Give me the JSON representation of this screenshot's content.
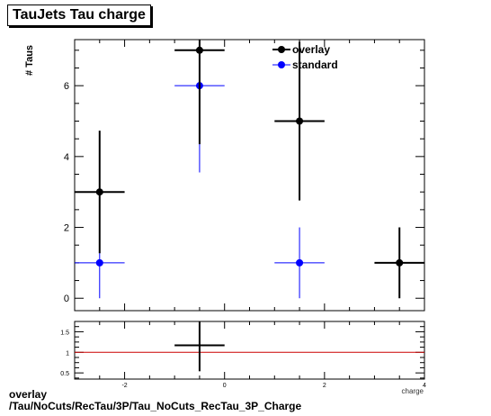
{
  "title": "TauJets Tau charge",
  "footer": {
    "line1": "overlay",
    "line2": "/Tau/NoCuts/RecTau/3P/Tau_NoCuts_RecTau_3P_Charge"
  },
  "chart_data": [
    {
      "type": "scatter",
      "panel": "main",
      "ylabel": "# Taus",
      "xlabel": "charge",
      "xlim": [
        -3,
        4
      ],
      "ylim": [
        -0.35,
        7.3
      ],
      "y_ticks": [
        0,
        2,
        4,
        6
      ],
      "legend": {
        "placement": "top-right",
        "entries": [
          "overlay",
          "standard"
        ]
      },
      "series": [
        {
          "name": "overlay",
          "color": "#000000",
          "points": [
            {
              "x": -2.5,
              "y": 3,
              "xerr": 0.5,
              "yerr_low": 1.73,
              "yerr_high": 1.73
            },
            {
              "x": -0.5,
              "y": 7,
              "xerr": 0.5,
              "yerr_low": 2.65,
              "yerr_high": 2.65
            },
            {
              "x": 1.5,
              "y": 5,
              "xerr": 0.5,
              "yerr_low": 2.24,
              "yerr_high": 2.24
            },
            {
              "x": 3.5,
              "y": 1,
              "xerr": 0.5,
              "yerr_low": 1.0,
              "yerr_high": 1.0
            }
          ]
        },
        {
          "name": "standard",
          "color": "#0000ff",
          "points": [
            {
              "x": -2.5,
              "y": 1,
              "xerr": 0.5,
              "yerr_low": 1.0,
              "yerr_high": 1.0
            },
            {
              "x": -0.5,
              "y": 6,
              "xerr": 0.5,
              "yerr_low": 2.45,
              "yerr_high": 2.45
            },
            {
              "x": 1.5,
              "y": 1,
              "xerr": 0.5,
              "yerr_low": 1.0,
              "yerr_high": 1.0
            }
          ]
        }
      ]
    },
    {
      "type": "scatter",
      "panel": "ratio",
      "xlim": [
        -3,
        4
      ],
      "ylim": [
        0.35,
        1.75
      ],
      "y_ticks": [
        0.5,
        1,
        1.5
      ],
      "x_ticks": [
        -2,
        0,
        2,
        4
      ],
      "reference_line": {
        "y": 1,
        "color": "#cc0000"
      },
      "series": [
        {
          "name": "",
          "color": "#000000",
          "points": [
            {
              "x": -0.5,
              "y": 1.17,
              "xerr": 0.5,
              "yerr_low": 0.63,
              "yerr_high": 0.63
            }
          ]
        }
      ]
    }
  ]
}
